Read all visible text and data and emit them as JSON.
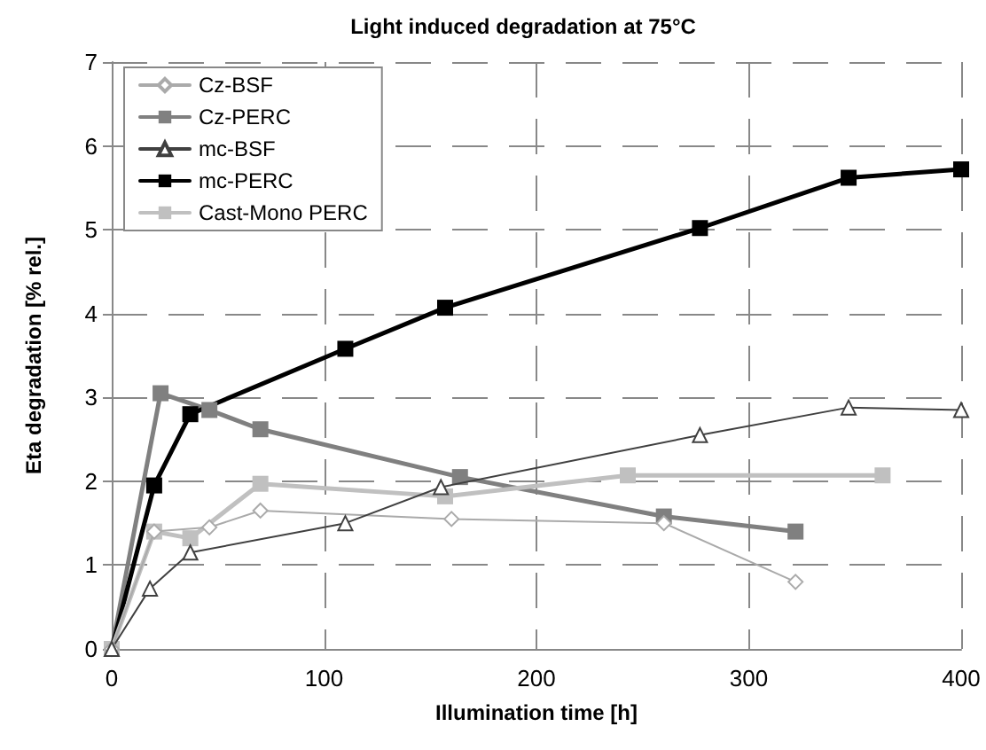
{
  "chart_data": {
    "type": "line",
    "title": "Light induced degradation at 75°C",
    "xlabel": "Illumination time [h]",
    "ylabel": "Eta degradation [% rel.]",
    "xlim": [
      0,
      400
    ],
    "xticks": [
      0,
      100,
      200,
      300,
      400
    ],
    "ylim": [
      0,
      7
    ],
    "yticks": [
      0,
      1,
      2,
      3,
      4,
      5,
      6,
      7
    ],
    "grid": true,
    "legend": "top left",
    "series": [
      {
        "name": "Cz-BSF",
        "color": "#aaaaaa",
        "marker": "diamond",
        "x": [
          0,
          20,
          46,
          70,
          160,
          260,
          322
        ],
        "values": [
          0,
          1.4,
          1.45,
          1.65,
          1.55,
          1.5,
          0.8
        ]
      },
      {
        "name": "Cz-PERC",
        "color": "#808080",
        "marker": "square",
        "x": [
          0,
          23,
          46,
          70,
          164,
          260,
          322
        ],
        "values": [
          0,
          3.05,
          2.85,
          2.62,
          2.05,
          1.58,
          1.4
        ]
      },
      {
        "name": "mc-BSF",
        "color": "#404040",
        "marker": "triangle",
        "x": [
          0,
          18,
          37,
          110,
          155,
          277,
          347,
          400
        ],
        "values": [
          0,
          0.72,
          1.15,
          1.5,
          1.93,
          2.55,
          2.88,
          2.85
        ]
      },
      {
        "name": "mc-PERC",
        "color": "#000000",
        "marker": "square",
        "x": [
          0,
          20,
          37,
          110,
          157,
          277,
          347,
          400
        ],
        "values": [
          0,
          1.95,
          2.8,
          3.58,
          4.07,
          5.02,
          5.62,
          5.72
        ]
      },
      {
        "name": "Cast-Mono PERC",
        "color": "#c0c0c0",
        "marker": "square",
        "x": [
          0,
          20,
          37,
          70,
          157,
          243,
          363
        ],
        "values": [
          0,
          1.4,
          1.32,
          1.97,
          1.82,
          2.07,
          2.07
        ]
      }
    ]
  }
}
